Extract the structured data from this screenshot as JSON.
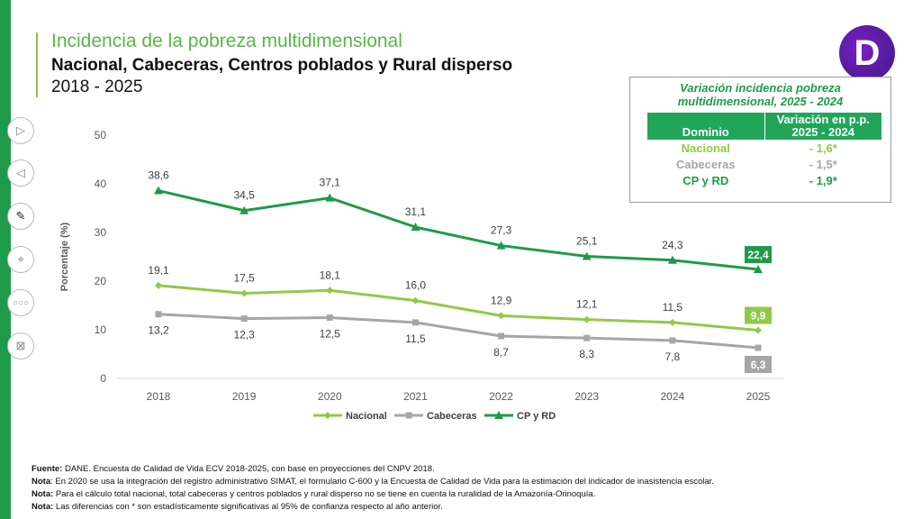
{
  "title": "Incidencia de la pobreza multidimensional",
  "subtitle": "Nacional, Cabeceras, Centros poblados y Rural disperso",
  "period": "2018 - 2025",
  "logo_text": "D",
  "slide_controls": [
    "next-icon",
    "previous-icon",
    "pen-icon",
    "pointer-icon",
    "more-icon",
    "end-show-icon"
  ],
  "chart_data": {
    "type": "line",
    "ylabel": "Porcentaje (%)",
    "ylim": [
      0,
      50
    ],
    "yticks": [
      "0",
      "10",
      "20",
      "30",
      "40",
      "50"
    ],
    "categories": [
      "2018",
      "2019",
      "2020",
      "2021",
      "2022",
      "2023",
      "2024",
      "2025"
    ],
    "legend_position": "bottom",
    "grid": false,
    "series": [
      {
        "name": "Nacional",
        "color": "#92c84a",
        "marker": "diamond",
        "values": [
          19.1,
          17.5,
          18.1,
          16.0,
          12.9,
          12.1,
          11.5,
          9.9
        ],
        "labels": [
          "19,1",
          "17,5",
          "18,1",
          "16,0",
          "12,9",
          "12,1",
          "11,5",
          "9,9"
        ]
      },
      {
        "name": "Cabeceras",
        "color": "#a6a6a6",
        "marker": "square",
        "values": [
          13.2,
          12.3,
          12.5,
          11.5,
          8.7,
          8.3,
          7.8,
          6.3
        ],
        "labels": [
          "13,2",
          "12,3",
          "12,5",
          "11,5",
          "8,7",
          "8,3",
          "7,8",
          "6,3"
        ]
      },
      {
        "name": "CP y RD",
        "color": "#1f9a4a",
        "marker": "triangle",
        "values": [
          38.6,
          34.5,
          37.1,
          31.1,
          27.3,
          25.1,
          24.3,
          22.4
        ],
        "labels": [
          "38,6",
          "34,5",
          "37,1",
          "31,1",
          "27,3",
          "25,1",
          "24,3",
          "22,4"
        ]
      }
    ]
  },
  "variation_table": {
    "title": "Variación incidencia pobreza multidimensional, 2025 - 2024",
    "headers": [
      "Dominio",
      "Variación en p.p. 2025 - 2024"
    ],
    "rows": [
      {
        "domain": "Nacional",
        "value": "- 1,6*",
        "color": "#92c84a"
      },
      {
        "domain": "Cabeceras",
        "value": "- 1,5*",
        "color": "#a6a6a6"
      },
      {
        "domain": "CP y RD",
        "value": "- 1,9*",
        "color": "#1f9a4a"
      }
    ]
  },
  "notes": [
    {
      "label": "Fuente:",
      "text": " DANE. Encuesta de Calidad de Vida ECV 2018-2025, con base en proyecciones del CNPV 2018."
    },
    {
      "label": "Nota",
      "text": ": En 2020 se usa la integración del registro administrativo SIMAT, el formulario C-600 y la Encuesta de Calidad de Vida para la estimación del indicador de inasistencia escolar."
    },
    {
      "label": "Nota:",
      "text": " Para el cálculo total nacional, total cabeceras y centros poblados y rural disperso no se tiene en cuenta la ruralidad de la Amazonía-Orinoquía."
    },
    {
      "label": "Nota:",
      "text": " Las diferencias con * son estadísticamente significativas al 95% de confianza respecto al año anterior."
    }
  ]
}
